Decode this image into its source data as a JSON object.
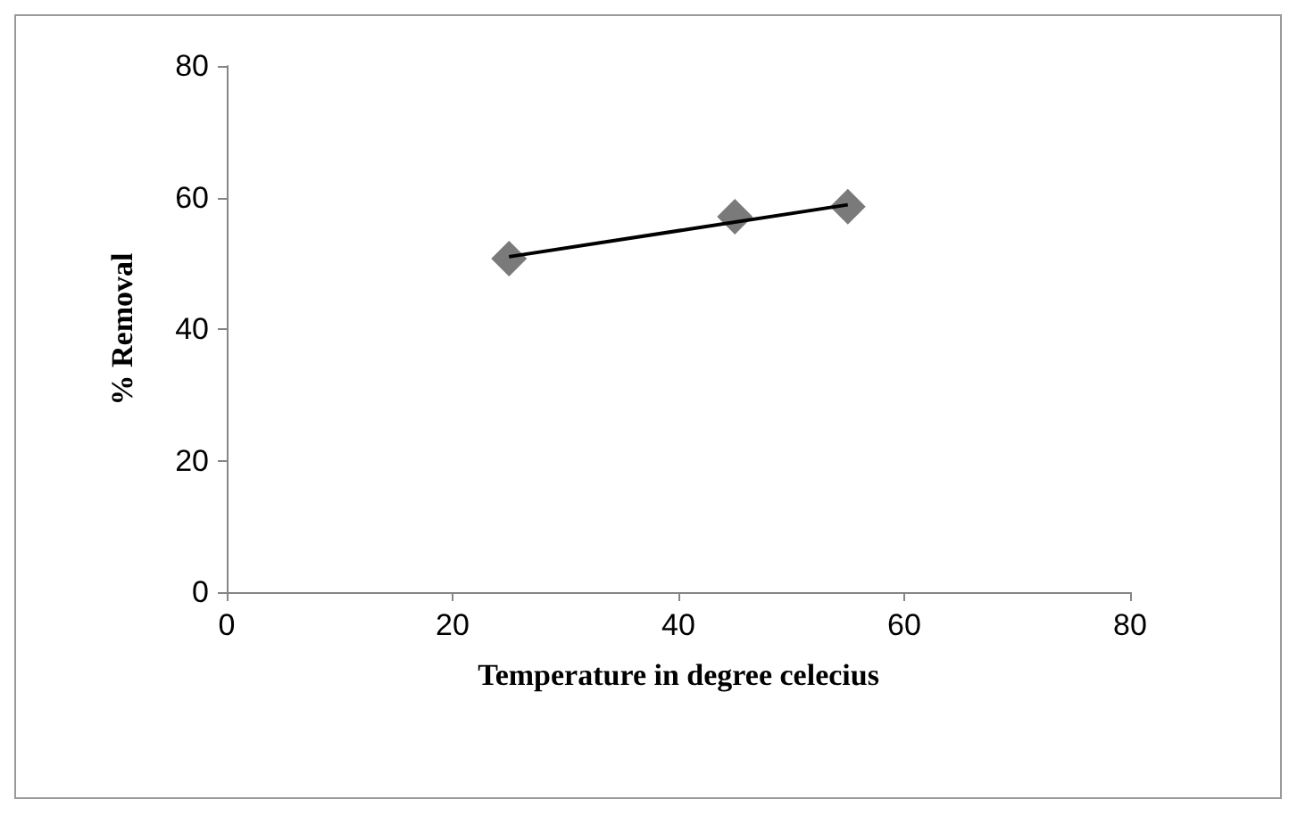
{
  "chart_data": {
    "type": "scatter",
    "xlabel": "Temperature in degree celecius",
    "ylabel": "% Removal",
    "xlim": [
      0,
      80
    ],
    "xticks": [
      0,
      20,
      40,
      60,
      80
    ],
    "ylim": [
      0,
      80
    ],
    "yticks": [
      0,
      20,
      40,
      60,
      80
    ],
    "grid": false,
    "marker": "diamond",
    "series": [
      {
        "color": "#595959",
        "x": [
          25,
          45,
          55
        ],
        "values": [
          50.7,
          57.1,
          58.6
        ]
      },
      {
        "type": "line",
        "color": "#000000",
        "x": [
          25,
          55
        ],
        "values": [
          51.0,
          58.9
        ],
        "marker": "none",
        "line_style": "solid"
      }
    ]
  }
}
